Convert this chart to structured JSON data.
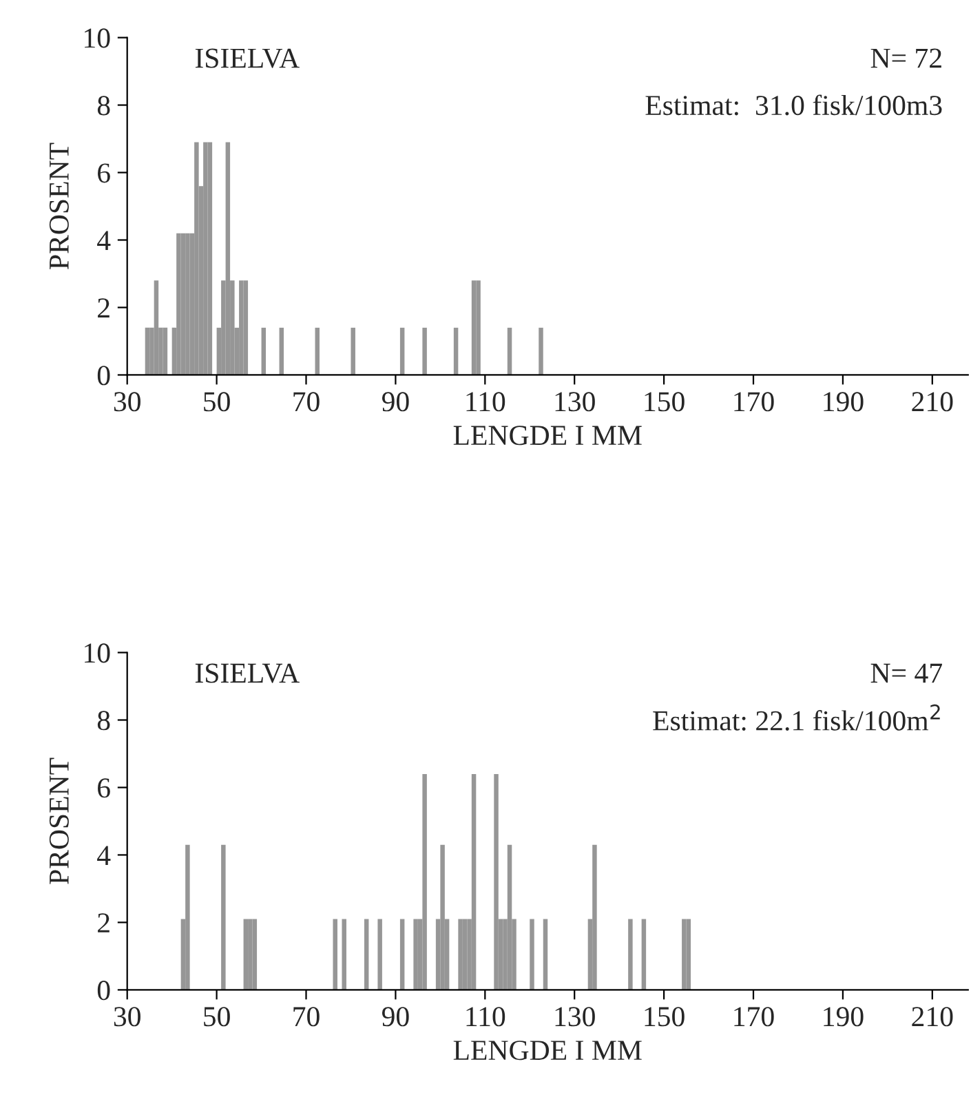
{
  "chart_data": [
    {
      "type": "histogram",
      "xlabel": "LENGDE I MM",
      "ylabel": "PROSENT",
      "annotations": [
        "ISIELVA",
        "N= 72",
        "Estimat:  31.0 fisk/100m3"
      ],
      "color": "#969696",
      "bins": [
        34,
        35,
        36,
        37,
        38,
        39,
        40,
        41,
        42,
        43,
        44,
        45,
        46,
        47,
        48,
        49,
        50,
        51,
        52,
        53,
        54,
        55,
        56,
        57,
        58,
        59,
        60,
        61,
        62,
        63,
        64,
        65,
        66,
        67,
        68,
        69,
        70,
        71,
        72,
        73,
        74,
        75,
        76,
        77,
        78,
        79,
        80,
        81,
        82,
        83,
        84,
        85,
        86,
        87,
        88,
        89,
        90,
        91,
        92,
        93,
        94,
        95,
        96,
        97,
        98,
        99,
        100,
        101,
        102,
        103,
        104,
        105,
        106,
        107,
        108,
        109,
        110,
        111,
        112,
        113,
        114,
        115,
        116,
        117,
        118,
        119,
        120,
        121,
        122,
        123
      ],
      "values": [
        1.4,
        1.4,
        2.8,
        1.4,
        1.4,
        0,
        1.4,
        4.2,
        4.2,
        4.2,
        4.2,
        6.9,
        5.6,
        6.9,
        6.9,
        0,
        1.4,
        2.8,
        6.9,
        2.8,
        1.4,
        2.8,
        2.8,
        0,
        0,
        0,
        1.4,
        0,
        0,
        0,
        1.4,
        0,
        0,
        0,
        0,
        0,
        0,
        0,
        1.4,
        0,
        0,
        0,
        0,
        0,
        0,
        0,
        1.4,
        0,
        0,
        0,
        0,
        0,
        0,
        0,
        0,
        0,
        0,
        1.4,
        0,
        0,
        0,
        0,
        1.4,
        0,
        0,
        0,
        0,
        0,
        0,
        1.4,
        0,
        0,
        0,
        2.8,
        2.8,
        0,
        0,
        0,
        0,
        0,
        0,
        1.4,
        0,
        0,
        0,
        0,
        0,
        0,
        1.4
      ],
      "xlim": [
        30,
        218
      ],
      "xticks": [
        30,
        50,
        70,
        90,
        110,
        130,
        150,
        170,
        190,
        210
      ],
      "ylim": [
        0,
        10
      ],
      "yticks": [
        0,
        2,
        4,
        6,
        8,
        10
      ],
      "grid": false,
      "legend": false
    },
    {
      "type": "histogram",
      "xlabel": "LENGDE I MM",
      "ylabel": "PROSENT",
      "annotations": [
        "ISIELVA",
        "N= 47",
        "Estimat: 22.1 fisk/100m$^{2}$"
      ],
      "color": "#969696",
      "bins": [
        42,
        43,
        44,
        45,
        46,
        47,
        48,
        49,
        50,
        51,
        52,
        53,
        54,
        55,
        56,
        57,
        58,
        59,
        60,
        61,
        62,
        63,
        64,
        65,
        66,
        67,
        68,
        69,
        70,
        71,
        72,
        73,
        74,
        75,
        76,
        77,
        78,
        79,
        80,
        81,
        82,
        83,
        84,
        85,
        86,
        87,
        88,
        89,
        90,
        91,
        92,
        93,
        94,
        95,
        96,
        97,
        98,
        99,
        100,
        101,
        102,
        103,
        104,
        105,
        106,
        107,
        108,
        109,
        110,
        111,
        112,
        113,
        114,
        115,
        116,
        117,
        118,
        119,
        120,
        121,
        122,
        123,
        124,
        125,
        126,
        127,
        128,
        129,
        130,
        131,
        132,
        133,
        134,
        135,
        136,
        137,
        138,
        139,
        140,
        141,
        142,
        143,
        144,
        145,
        146,
        147,
        148,
        149,
        150,
        151,
        152,
        153,
        154,
        155,
        156
      ],
      "values": [
        2.1,
        4.3,
        0,
        0,
        0,
        0,
        0,
        0,
        0,
        4.3,
        0,
        0,
        0,
        0,
        2.1,
        2.1,
        2.1,
        0,
        0,
        0,
        0,
        0,
        0,
        0,
        0,
        0,
        0,
        0,
        0,
        0,
        0,
        0,
        0,
        0,
        2.1,
        0,
        2.1,
        0,
        0,
        0,
        0,
        2.1,
        0,
        0,
        2.1,
        0,
        0,
        0,
        0,
        2.1,
        0,
        0,
        2.1,
        2.1,
        6.4,
        0,
        0,
        2.1,
        4.3,
        2.1,
        0,
        0,
        2.1,
        2.1,
        2.1,
        6.4,
        0,
        0,
        0,
        0,
        6.4,
        2.1,
        2.1,
        4.3,
        2.1,
        0,
        0,
        0,
        2.1,
        0,
        0,
        2.1,
        0,
        0,
        0,
        0,
        0,
        0,
        0,
        0,
        0,
        2.1,
        4.3,
        0,
        0,
        0,
        0,
        0,
        0,
        0,
        2.1,
        0,
        0,
        2.1,
        0,
        0,
        0,
        0,
        0,
        0,
        0,
        0,
        2.1,
        2.1
      ],
      "xlim": [
        30,
        218
      ],
      "xticks": [
        30,
        50,
        70,
        90,
        110,
        130,
        150,
        170,
        190,
        210
      ],
      "ylim": [
        0,
        10
      ],
      "yticks": [
        0,
        2,
        4,
        6,
        8,
        10
      ],
      "grid": false,
      "legend": false
    }
  ]
}
